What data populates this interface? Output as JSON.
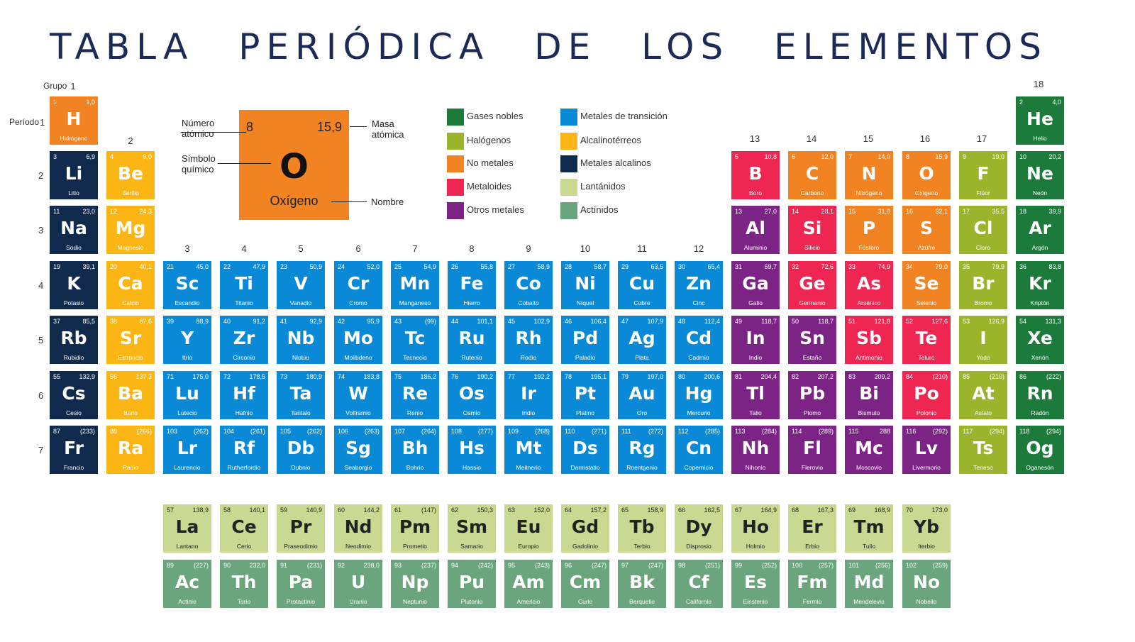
{
  "title": "TABLA PERIÓDICA DE LOS ELEMENTOS",
  "labels": {
    "grupo": "Grupo",
    "periodo": "Período"
  },
  "groups": [
    "1",
    "2",
    "3",
    "4",
    "5",
    "6",
    "7",
    "8",
    "9",
    "10",
    "11",
    "12",
    "13",
    "14",
    "15",
    "16",
    "17",
    "18"
  ],
  "periods": [
    "1",
    "2",
    "3",
    "4",
    "5",
    "6",
    "7"
  ],
  "example": {
    "number": "8",
    "mass": "15,9",
    "symbol": "O",
    "name": "Oxígeno",
    "label_number_1": "Número",
    "label_number_2": "atómico",
    "label_symbol_1": "Símbolo",
    "label_symbol_2": "químico",
    "label_mass_1": "Masa",
    "label_mass_2": "atómica",
    "label_name": "Nombre"
  },
  "legend": [
    {
      "label": "Gases nobles",
      "color": "#1c7a3a"
    },
    {
      "label": "Halógenos",
      "color": "#9ab52c"
    },
    {
      "label": "No metales",
      "color": "#f28322"
    },
    {
      "label": "Metaloides",
      "color": "#ee2651"
    },
    {
      "label": "Otros metales",
      "color": "#7b2486"
    },
    {
      "label": "Metales de transición",
      "color": "#0a8ad6"
    },
    {
      "label": "Alcalinotérreos",
      "color": "#fbb615"
    },
    {
      "label": "Metales alcalinos",
      "color": "#0f2a4d"
    },
    {
      "label": "Lantánidos",
      "color": "#cad992"
    },
    {
      "label": "Actínidos",
      "color": "#6aa57e"
    }
  ],
  "elements": [
    {
      "n": "1",
      "m": "1,0",
      "s": "H",
      "name": "Hidrógeno",
      "row": 1,
      "col": 1,
      "cat": "nonmet"
    },
    {
      "n": "2",
      "m": "4,0",
      "s": "He",
      "name": "Helio",
      "row": 1,
      "col": 18,
      "cat": "noble"
    },
    {
      "n": "3",
      "m": "6,9",
      "s": "Li",
      "name": "Litio",
      "row": 2,
      "col": 1,
      "cat": "alkali"
    },
    {
      "n": "4",
      "m": "9,0",
      "s": "Be",
      "name": "Berilio",
      "row": 2,
      "col": 2,
      "cat": "earth"
    },
    {
      "n": "5",
      "m": "10,8",
      "s": "B",
      "name": "Boro",
      "row": 2,
      "col": 13,
      "cat": "metalloid"
    },
    {
      "n": "6",
      "m": "12,0",
      "s": "C",
      "name": "Carbono",
      "row": 2,
      "col": 14,
      "cat": "nonmet"
    },
    {
      "n": "7",
      "m": "14,0",
      "s": "N",
      "name": "Nitrógeno",
      "row": 2,
      "col": 15,
      "cat": "nonmet"
    },
    {
      "n": "8",
      "m": "15,9",
      "s": "O",
      "name": "Oxígeno",
      "row": 2,
      "col": 16,
      "cat": "nonmet"
    },
    {
      "n": "9",
      "m": "19,0",
      "s": "F",
      "name": "Flúor",
      "row": 2,
      "col": 17,
      "cat": "halo"
    },
    {
      "n": "10",
      "m": "20,2",
      "s": "Ne",
      "name": "Neón",
      "row": 2,
      "col": 18,
      "cat": "noble"
    },
    {
      "n": "11",
      "m": "23,0",
      "s": "Na",
      "name": "Sodio",
      "row": 3,
      "col": 1,
      "cat": "alkali"
    },
    {
      "n": "12",
      "m": "24,3",
      "s": "Mg",
      "name": "Magnesio",
      "row": 3,
      "col": 2,
      "cat": "earth"
    },
    {
      "n": "13",
      "m": "27,0",
      "s": "Al",
      "name": "Aluminio",
      "row": 3,
      "col": 13,
      "cat": "other"
    },
    {
      "n": "14",
      "m": "28,1",
      "s": "Si",
      "name": "Silicio",
      "row": 3,
      "col": 14,
      "cat": "metalloid"
    },
    {
      "n": "15",
      "m": "31,0",
      "s": "P",
      "name": "Fósforo",
      "row": 3,
      "col": 15,
      "cat": "nonmet"
    },
    {
      "n": "16",
      "m": "32,1",
      "s": "S",
      "name": "Azúfre",
      "row": 3,
      "col": 16,
      "cat": "nonmet"
    },
    {
      "n": "17",
      "m": "35,5",
      "s": "Cl",
      "name": "Cloro",
      "row": 3,
      "col": 17,
      "cat": "halo"
    },
    {
      "n": "18",
      "m": "39,9",
      "s": "Ar",
      "name": "Argón",
      "row": 3,
      "col": 18,
      "cat": "noble"
    },
    {
      "n": "19",
      "m": "39,1",
      "s": "K",
      "name": "Potasio",
      "row": 4,
      "col": 1,
      "cat": "alkali"
    },
    {
      "n": "20",
      "m": "40,1",
      "s": "Ca",
      "name": "Calcio",
      "row": 4,
      "col": 2,
      "cat": "earth"
    },
    {
      "n": "21",
      "m": "45,0",
      "s": "Sc",
      "name": "Escandio",
      "row": 4,
      "col": 3,
      "cat": "trans"
    },
    {
      "n": "22",
      "m": "47,9",
      "s": "Ti",
      "name": "Titanio",
      "row": 4,
      "col": 4,
      "cat": "trans"
    },
    {
      "n": "23",
      "m": "50,9",
      "s": "V",
      "name": "Vanadio",
      "row": 4,
      "col": 5,
      "cat": "trans"
    },
    {
      "n": "24",
      "m": "52,0",
      "s": "Cr",
      "name": "Cromo",
      "row": 4,
      "col": 6,
      "cat": "trans"
    },
    {
      "n": "25",
      "m": "54,9",
      "s": "Mn",
      "name": "Manganeso",
      "row": 4,
      "col": 7,
      "cat": "trans"
    },
    {
      "n": "26",
      "m": "55,8",
      "s": "Fe",
      "name": "Hierro",
      "row": 4,
      "col": 8,
      "cat": "trans"
    },
    {
      "n": "27",
      "m": "58,9",
      "s": "Co",
      "name": "Cobalto",
      "row": 4,
      "col": 9,
      "cat": "trans"
    },
    {
      "n": "28",
      "m": "58,7",
      "s": "Ni",
      "name": "Níquel",
      "row": 4,
      "col": 10,
      "cat": "trans"
    },
    {
      "n": "29",
      "m": "63,5",
      "s": "Cu",
      "name": "Cobre",
      "row": 4,
      "col": 11,
      "cat": "trans"
    },
    {
      "n": "30",
      "m": "65,4",
      "s": "Zn",
      "name": "Cinc",
      "row": 4,
      "col": 12,
      "cat": "trans"
    },
    {
      "n": "31",
      "m": "69,7",
      "s": "Ga",
      "name": "Galio",
      "row": 4,
      "col": 13,
      "cat": "other"
    },
    {
      "n": "32",
      "m": "72,6",
      "s": "Ge",
      "name": "Germanio",
      "row": 4,
      "col": 14,
      "cat": "metalloid"
    },
    {
      "n": "33",
      "m": "74,9",
      "s": "As",
      "name": "Arsénico",
      "row": 4,
      "col": 15,
      "cat": "metalloid"
    },
    {
      "n": "34",
      "m": "79,0",
      "s": "Se",
      "name": "Selenio",
      "row": 4,
      "col": 16,
      "cat": "nonmet"
    },
    {
      "n": "35",
      "m": "79,9",
      "s": "Br",
      "name": "Bromo",
      "row": 4,
      "col": 17,
      "cat": "halo"
    },
    {
      "n": "36",
      "m": "83,8",
      "s": "Kr",
      "name": "Kriptón",
      "row": 4,
      "col": 18,
      "cat": "noble"
    },
    {
      "n": "37",
      "m": "85,5",
      "s": "Rb",
      "name": "Rubidio",
      "row": 5,
      "col": 1,
      "cat": "alkali"
    },
    {
      "n": "38",
      "m": "87,6",
      "s": "Sr",
      "name": "Estroncio",
      "row": 5,
      "col": 2,
      "cat": "earth"
    },
    {
      "n": "39",
      "m": "88,9",
      "s": "Y",
      "name": "Itrio",
      "row": 5,
      "col": 3,
      "cat": "trans"
    },
    {
      "n": "40",
      "m": "91,2",
      "s": "Zr",
      "name": "Circonio",
      "row": 5,
      "col": 4,
      "cat": "trans"
    },
    {
      "n": "41",
      "m": "92,9",
      "s": "Nb",
      "name": "Niobio",
      "row": 5,
      "col": 5,
      "cat": "trans"
    },
    {
      "n": "42",
      "m": "95,9",
      "s": "Mo",
      "name": "Molibdeno",
      "row": 5,
      "col": 6,
      "cat": "trans"
    },
    {
      "n": "43",
      "m": "(99)",
      "s": "Tc",
      "name": "Tecnecio",
      "row": 5,
      "col": 7,
      "cat": "trans"
    },
    {
      "n": "44",
      "m": "101,1",
      "s": "Ru",
      "name": "Rutenio",
      "row": 5,
      "col": 8,
      "cat": "trans"
    },
    {
      "n": "45",
      "m": "102,9",
      "s": "Rh",
      "name": "Rodio",
      "row": 5,
      "col": 9,
      "cat": "trans"
    },
    {
      "n": "46",
      "m": "106,4",
      "s": "Pd",
      "name": "Paladio",
      "row": 5,
      "col": 10,
      "cat": "trans"
    },
    {
      "n": "47",
      "m": "107,9",
      "s": "Ag",
      "name": "Plata",
      "row": 5,
      "col": 11,
      "cat": "trans"
    },
    {
      "n": "48",
      "m": "112,4",
      "s": "Cd",
      "name": "Cadmio",
      "row": 5,
      "col": 12,
      "cat": "trans"
    },
    {
      "n": "49",
      "m": "118,7",
      "s": "In",
      "name": "Indio",
      "row": 5,
      "col": 13,
      "cat": "other"
    },
    {
      "n": "50",
      "m": "118,7",
      "s": "Sn",
      "name": "Estaño",
      "row": 5,
      "col": 14,
      "cat": "other"
    },
    {
      "n": "51",
      "m": "121,8",
      "s": "Sb",
      "name": "Antimonio",
      "row": 5,
      "col": 15,
      "cat": "metalloid"
    },
    {
      "n": "52",
      "m": "127,6",
      "s": "Te",
      "name": "Teluro",
      "row": 5,
      "col": 16,
      "cat": "metalloid"
    },
    {
      "n": "53",
      "m": "126,9",
      "s": "I",
      "name": "Yodo",
      "row": 5,
      "col": 17,
      "cat": "halo"
    },
    {
      "n": "54",
      "m": "131,3",
      "s": "Xe",
      "name": "Xenón",
      "row": 5,
      "col": 18,
      "cat": "noble"
    },
    {
      "n": "55",
      "m": "132,9",
      "s": "Cs",
      "name": "Cesio",
      "row": 6,
      "col": 1,
      "cat": "alkali"
    },
    {
      "n": "56",
      "m": "137,3",
      "s": "Ba",
      "name": "Bario",
      "row": 6,
      "col": 2,
      "cat": "earth"
    },
    {
      "n": "71",
      "m": "175,0",
      "s": "Lu",
      "name": "Lutecio",
      "row": 6,
      "col": 3,
      "cat": "trans"
    },
    {
      "n": "72",
      "m": "178,5",
      "s": "Hf",
      "name": "Hafnio",
      "row": 6,
      "col": 4,
      "cat": "trans"
    },
    {
      "n": "73",
      "m": "180,9",
      "s": "Ta",
      "name": "Tantalo",
      "row": 6,
      "col": 5,
      "cat": "trans"
    },
    {
      "n": "74",
      "m": "183,8",
      "s": "W",
      "name": "Volframio",
      "row": 6,
      "col": 6,
      "cat": "trans"
    },
    {
      "n": "75",
      "m": "186,2",
      "s": "Re",
      "name": "Renio",
      "row": 6,
      "col": 7,
      "cat": "trans"
    },
    {
      "n": "76",
      "m": "190,2",
      "s": "Os",
      "name": "Osmio",
      "row": 6,
      "col": 8,
      "cat": "trans"
    },
    {
      "n": "77",
      "m": "192,2",
      "s": "Ir",
      "name": "Iridio",
      "row": 6,
      "col": 9,
      "cat": "trans"
    },
    {
      "n": "78",
      "m": "195,1",
      "s": "Pt",
      "name": "Platino",
      "row": 6,
      "col": 10,
      "cat": "trans"
    },
    {
      "n": "79",
      "m": "197,0",
      "s": "Au",
      "name": "Oro",
      "row": 6,
      "col": 11,
      "cat": "trans"
    },
    {
      "n": "80",
      "m": "200,6",
      "s": "Hg",
      "name": "Mercurio",
      "row": 6,
      "col": 12,
      "cat": "trans"
    },
    {
      "n": "81",
      "m": "204,4",
      "s": "Tl",
      "name": "Talio",
      "row": 6,
      "col": 13,
      "cat": "other"
    },
    {
      "n": "82",
      "m": "207,2",
      "s": "Pb",
      "name": "Plomo",
      "row": 6,
      "col": 14,
      "cat": "other"
    },
    {
      "n": "83",
      "m": "209,2",
      "s": "Bi",
      "name": "Bismuto",
      "row": 6,
      "col": 15,
      "cat": "other"
    },
    {
      "n": "84",
      "m": "(210)",
      "s": "Po",
      "name": "Polonio",
      "row": 6,
      "col": 16,
      "cat": "metalloid"
    },
    {
      "n": "85",
      "m": "(210)",
      "s": "At",
      "name": "Astato",
      "row": 6,
      "col": 17,
      "cat": "halo"
    },
    {
      "n": "86",
      "m": "(222)",
      "s": "Rn",
      "name": "Radón",
      "row": 6,
      "col": 18,
      "cat": "noble"
    },
    {
      "n": "87",
      "m": "(233)",
      "s": "Fr",
      "name": "Francio",
      "row": 7,
      "col": 1,
      "cat": "alkali"
    },
    {
      "n": "88",
      "m": "(266)",
      "s": "Ra",
      "name": "Radio",
      "row": 7,
      "col": 2,
      "cat": "earth"
    },
    {
      "n": "103",
      "m": "(262)",
      "s": "Lr",
      "name": "Laurencio",
      "row": 7,
      "col": 3,
      "cat": "trans"
    },
    {
      "n": "104",
      "m": "(261)",
      "s": "Rf",
      "name": "Rutherfordio",
      "row": 7,
      "col": 4,
      "cat": "trans"
    },
    {
      "n": "105",
      "m": "(262)",
      "s": "Db",
      "name": "Dubnio",
      "row": 7,
      "col": 5,
      "cat": "trans"
    },
    {
      "n": "106",
      "m": "(263)",
      "s": "Sg",
      "name": "Seaborgio",
      "row": 7,
      "col": 6,
      "cat": "trans"
    },
    {
      "n": "107",
      "m": "(264)",
      "s": "Bh",
      "name": "Bohrio",
      "row": 7,
      "col": 7,
      "cat": "trans"
    },
    {
      "n": "108",
      "m": "(277)",
      "s": "Hs",
      "name": "Hassio",
      "row": 7,
      "col": 8,
      "cat": "trans"
    },
    {
      "n": "109",
      "m": "(268)",
      "s": "Mt",
      "name": "Meitnerio",
      "row": 7,
      "col": 9,
      "cat": "trans"
    },
    {
      "n": "110",
      "m": "(271)",
      "s": "Ds",
      "name": "Darmstatio",
      "row": 7,
      "col": 10,
      "cat": "trans"
    },
    {
      "n": "111",
      "m": "(272)",
      "s": "Rg",
      "name": "Roentgenio",
      "row": 7,
      "col": 11,
      "cat": "trans"
    },
    {
      "n": "112",
      "m": "(285)",
      "s": "Cn",
      "name": "Copernicio",
      "row": 7,
      "col": 12,
      "cat": "trans"
    },
    {
      "n": "113",
      "m": "(284)",
      "s": "Nh",
      "name": "Nihonio",
      "row": 7,
      "col": 13,
      "cat": "other"
    },
    {
      "n": "114",
      "m": "(289)",
      "s": "Fl",
      "name": "Flerovio",
      "row": 7,
      "col": 14,
      "cat": "other"
    },
    {
      "n": "115",
      "m": "288",
      "s": "Mc",
      "name": "Moscovio",
      "row": 7,
      "col": 15,
      "cat": "other"
    },
    {
      "n": "116",
      "m": "(292)",
      "s": "Lv",
      "name": "Livermorio",
      "row": 7,
      "col": 16,
      "cat": "other"
    },
    {
      "n": "117",
      "m": "(294)",
      "s": "Ts",
      "name": "Teneso",
      "row": 7,
      "col": 17,
      "cat": "halo"
    },
    {
      "n": "118",
      "m": "(294)",
      "s": "Og",
      "name": "Oganesón",
      "row": 7,
      "col": 18,
      "cat": "noble"
    },
    {
      "n": "57",
      "m": "138,9",
      "s": "La",
      "name": "Lantano",
      "row": 8,
      "col": 3,
      "cat": "lanth"
    },
    {
      "n": "58",
      "m": "140,1",
      "s": "Ce",
      "name": "Cerio",
      "row": 8,
      "col": 4,
      "cat": "lanth"
    },
    {
      "n": "59",
      "m": "140,9",
      "s": "Pr",
      "name": "Praseodimio",
      "row": 8,
      "col": 5,
      "cat": "lanth"
    },
    {
      "n": "60",
      "m": "144,2",
      "s": "Nd",
      "name": "Neodimio",
      "row": 8,
      "col": 6,
      "cat": "lanth"
    },
    {
      "n": "61",
      "m": "(147)",
      "s": "Pm",
      "name": "Prometio",
      "row": 8,
      "col": 7,
      "cat": "lanth"
    },
    {
      "n": "62",
      "m": "150,3",
      "s": "Sm",
      "name": "Samario",
      "row": 8,
      "col": 8,
      "cat": "lanth"
    },
    {
      "n": "63",
      "m": "152,0",
      "s": "Eu",
      "name": "Europio",
      "row": 8,
      "col": 9,
      "cat": "lanth"
    },
    {
      "n": "64",
      "m": "157,2",
      "s": "Gd",
      "name": "Gadolinio",
      "row": 8,
      "col": 10,
      "cat": "lanth"
    },
    {
      "n": "65",
      "m": "158,9",
      "s": "Tb",
      "name": "Terbio",
      "row": 8,
      "col": 11,
      "cat": "lanth"
    },
    {
      "n": "66",
      "m": "162,5",
      "s": "Dy",
      "name": "Disprosio",
      "row": 8,
      "col": 12,
      "cat": "lanth"
    },
    {
      "n": "67",
      "m": "164,9",
      "s": "Ho",
      "name": "Holmio",
      "row": 8,
      "col": 13,
      "cat": "lanth"
    },
    {
      "n": "68",
      "m": "167,3",
      "s": "Er",
      "name": "Erbio",
      "row": 8,
      "col": 14,
      "cat": "lanth"
    },
    {
      "n": "69",
      "m": "168,9",
      "s": "Tm",
      "name": "Tulio",
      "row": 8,
      "col": 15,
      "cat": "lanth"
    },
    {
      "n": "70",
      "m": "173,0",
      "s": "Yb",
      "name": "Iterbio",
      "row": 8,
      "col": 16,
      "cat": "lanth"
    },
    {
      "n": "89",
      "m": "(227)",
      "s": "Ac",
      "name": "Actinio",
      "row": 9,
      "col": 3,
      "cat": "actin"
    },
    {
      "n": "90",
      "m": "232,0",
      "s": "Th",
      "name": "Torio",
      "row": 9,
      "col": 4,
      "cat": "actin"
    },
    {
      "n": "91",
      "m": "(231)",
      "s": "Pa",
      "name": "Protactinio",
      "row": 9,
      "col": 5,
      "cat": "actin"
    },
    {
      "n": "92",
      "m": "238,0",
      "s": "U",
      "name": "Uranio",
      "row": 9,
      "col": 6,
      "cat": "actin"
    },
    {
      "n": "93",
      "m": "(237)",
      "s": "Np",
      "name": "Neptunio",
      "row": 9,
      "col": 7,
      "cat": "actin"
    },
    {
      "n": "94",
      "m": "(242)",
      "s": "Pu",
      "name": "Plutonio",
      "row": 9,
      "col": 8,
      "cat": "actin"
    },
    {
      "n": "95",
      "m": "(243)",
      "s": "Am",
      "name": "Americio",
      "row": 9,
      "col": 9,
      "cat": "actin"
    },
    {
      "n": "96",
      "m": "(247)",
      "s": "Cm",
      "name": "Curio",
      "row": 9,
      "col": 10,
      "cat": "actin"
    },
    {
      "n": "97",
      "m": "(247)",
      "s": "Bk",
      "name": "Berquelio",
      "row": 9,
      "col": 11,
      "cat": "actin"
    },
    {
      "n": "98",
      "m": "(251)",
      "s": "Cf",
      "name": "Californio",
      "row": 9,
      "col": 12,
      "cat": "actin"
    },
    {
      "n": "99",
      "m": "(252)",
      "s": "Es",
      "name": "Einstenio",
      "row": 9,
      "col": 13,
      "cat": "actin"
    },
    {
      "n": "100",
      "m": "(257)",
      "s": "Fm",
      "name": "Fermio",
      "row": 9,
      "col": 14,
      "cat": "actin"
    },
    {
      "n": "101",
      "m": "(256)",
      "s": "Md",
      "name": "Mendelevio",
      "row": 9,
      "col": 15,
      "cat": "actin"
    },
    {
      "n": "102",
      "m": "(259)",
      "s": "No",
      "name": "Nobelio",
      "row": 9,
      "col": 16,
      "cat": "actin"
    }
  ]
}
